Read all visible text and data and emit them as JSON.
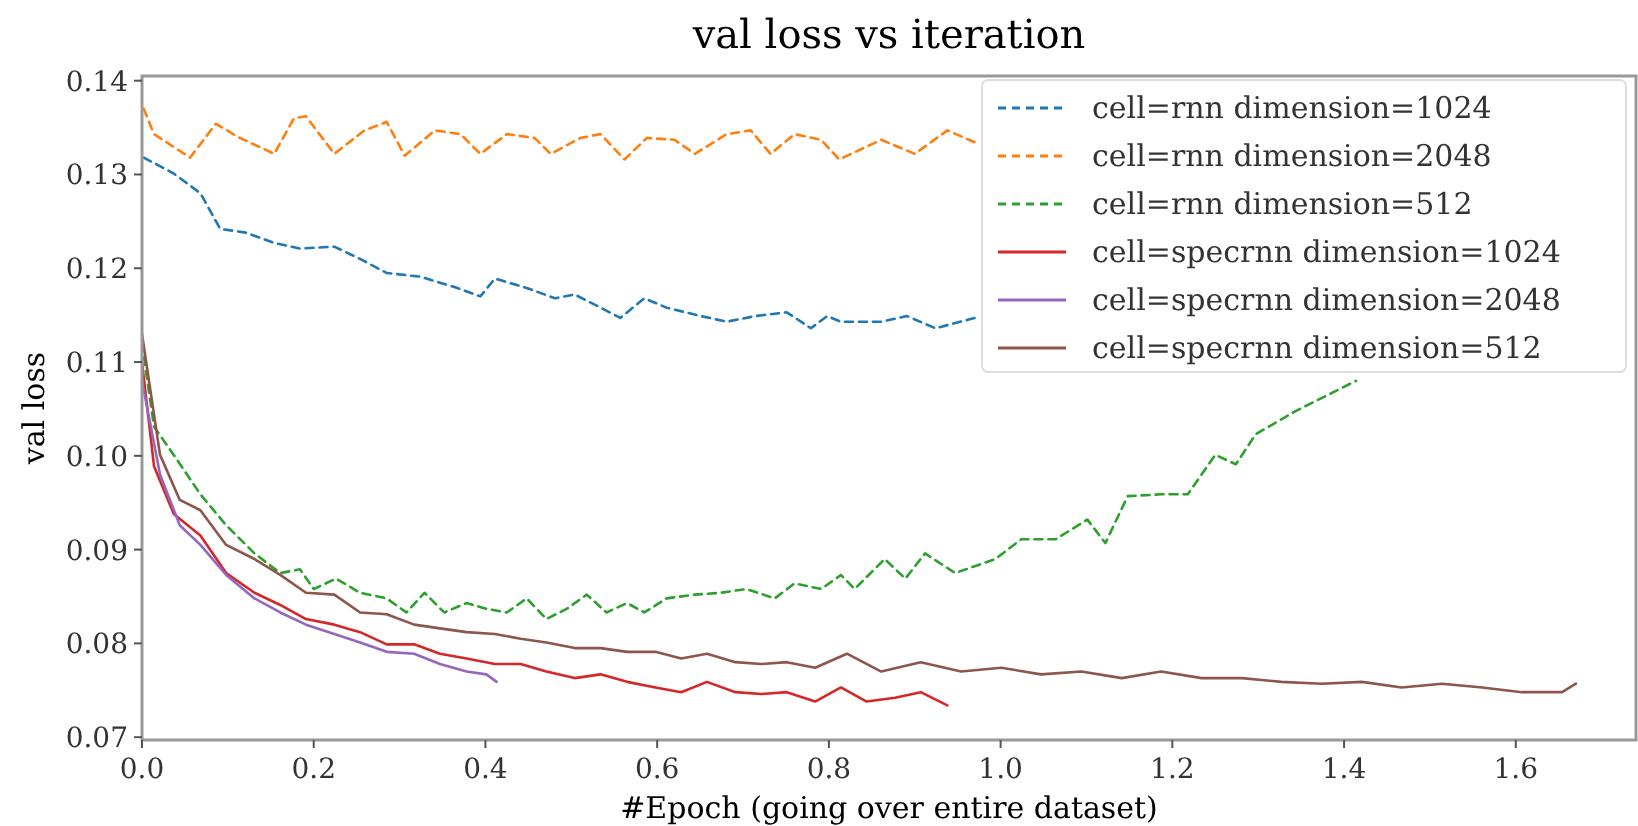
{
  "chart_data": {
    "type": "line",
    "title": "val loss vs iteration",
    "xlabel": "#Epoch (going over entire dataset)",
    "ylabel": "val loss",
    "xlim": [
      0,
      1.74
    ],
    "ylim": [
      0.0697,
      0.1405
    ],
    "xticks": [
      {
        "value": 0,
        "label": "0.0"
      },
      0.2,
      0.4,
      0.6,
      0.8,
      {
        "value": 1,
        "label": "1.0"
      },
      1.2,
      1.4,
      1.6
    ],
    "yticks": [
      0.07,
      0.08,
      0.09,
      {
        "value": 0.1,
        "label": "0.10"
      },
      0.11,
      0.12,
      0.13,
      0.14
    ],
    "grid": false,
    "legend": "top right",
    "marker": "none",
    "series": [
      {
        "name": "cell=rnn dimension=1024",
        "color": "#1f77b4",
        "line_style": "dashed",
        "x": [
          0.002,
          0.037,
          0.068,
          0.091,
          0.121,
          0.154,
          0.184,
          0.224,
          0.254,
          0.285,
          0.324,
          0.364,
          0.394,
          0.411,
          0.448,
          0.481,
          0.504,
          0.534,
          0.557,
          0.585,
          0.611,
          0.651,
          0.681,
          0.714,
          0.751,
          0.779,
          0.798,
          0.814,
          0.861,
          0.891,
          0.924,
          0.97
        ],
        "values": [
          0.1318,
          0.1301,
          0.128,
          0.1242,
          0.1238,
          0.1227,
          0.1221,
          0.1223,
          0.121,
          0.1195,
          0.1191,
          0.118,
          0.117,
          0.1189,
          0.1179,
          0.1168,
          0.1172,
          0.1158,
          0.1147,
          0.1168,
          0.1158,
          0.1149,
          0.1143,
          0.1149,
          0.1153,
          0.1136,
          0.1149,
          0.1143,
          0.1143,
          0.1149,
          0.1136,
          0.1147
        ]
      },
      {
        "name": "cell=rnn dimension=2048",
        "color": "#ff7f0e",
        "line_style": "dashed",
        "x": [
          0.002,
          0.014,
          0.056,
          0.086,
          0.114,
          0.154,
          0.177,
          0.191,
          0.224,
          0.259,
          0.285,
          0.306,
          0.341,
          0.371,
          0.394,
          0.425,
          0.457,
          0.476,
          0.511,
          0.534,
          0.562,
          0.588,
          0.62,
          0.644,
          0.681,
          0.709,
          0.732,
          0.76,
          0.791,
          0.812,
          0.861,
          0.9,
          0.938,
          0.973
        ],
        "values": [
          0.137,
          0.1343,
          0.1318,
          0.1354,
          0.1339,
          0.1322,
          0.136,
          0.1362,
          0.1322,
          0.1347,
          0.1356,
          0.132,
          0.1347,
          0.1343,
          0.1322,
          0.1343,
          0.1339,
          0.1322,
          0.1339,
          0.1343,
          0.1316,
          0.1339,
          0.1337,
          0.1322,
          0.1343,
          0.1347,
          0.1322,
          0.1343,
          0.1337,
          0.1316,
          0.1337,
          0.1322,
          0.1347,
          0.1333
        ]
      },
      {
        "name": "cell=rnn dimension=512",
        "color": "#2ca02c",
        "line_style": "dashed",
        "x": [
          0,
          0.014,
          0.037,
          0.068,
          0.098,
          0.131,
          0.161,
          0.184,
          0.2,
          0.226,
          0.254,
          0.285,
          0.308,
          0.329,
          0.352,
          0.378,
          0.401,
          0.425,
          0.448,
          0.471,
          0.495,
          0.518,
          0.541,
          0.565,
          0.585,
          0.611,
          0.644,
          0.674,
          0.704,
          0.737,
          0.76,
          0.791,
          0.814,
          0.83,
          0.865,
          0.889,
          0.912,
          0.947,
          0.994,
          1.024,
          1.064,
          1.101,
          1.122,
          1.148,
          1.187,
          1.218,
          1.25,
          1.274,
          1.297,
          1.344,
          1.414
        ],
        "values": [
          0.112,
          0.1031,
          0.1001,
          0.0959,
          0.0926,
          0.0896,
          0.0875,
          0.0879,
          0.0858,
          0.0869,
          0.0854,
          0.0848,
          0.0833,
          0.0854,
          0.0833,
          0.0843,
          0.0837,
          0.0833,
          0.0848,
          0.0826,
          0.0837,
          0.0852,
          0.0833,
          0.0843,
          0.0833,
          0.0848,
          0.0852,
          0.0854,
          0.0858,
          0.0848,
          0.0864,
          0.0858,
          0.0873,
          0.0858,
          0.089,
          0.0869,
          0.0896,
          0.0875,
          0.089,
          0.0911,
          0.0911,
          0.0932,
          0.0907,
          0.0957,
          0.0959,
          0.0959,
          0.1001,
          0.0991,
          0.1023,
          0.1048,
          0.108
        ]
      },
      {
        "name": "cell=specrnn dimension=1024",
        "color": "#d62728",
        "line_style": "solid",
        "x": [
          0,
          0.014,
          0.037,
          0.068,
          0.098,
          0.131,
          0.161,
          0.191,
          0.224,
          0.254,
          0.285,
          0.317,
          0.347,
          0.378,
          0.411,
          0.441,
          0.471,
          0.504,
          0.534,
          0.565,
          0.598,
          0.628,
          0.658,
          0.691,
          0.721,
          0.751,
          0.784,
          0.814,
          0.844,
          0.877,
          0.907,
          0.938
        ],
        "values": [
          0.11,
          0.0989,
          0.0938,
          0.0915,
          0.0875,
          0.0854,
          0.0841,
          0.0826,
          0.082,
          0.0812,
          0.0799,
          0.0799,
          0.0789,
          0.0784,
          0.0778,
          0.0778,
          0.077,
          0.0763,
          0.0767,
          0.0759,
          0.0753,
          0.0748,
          0.0759,
          0.0748,
          0.0746,
          0.0748,
          0.0738,
          0.0753,
          0.0738,
          0.0742,
          0.0748,
          0.0734
        ]
      },
      {
        "name": "cell=specrnn dimension=2048",
        "color": "#9467bd",
        "line_style": "solid",
        "x": [
          0,
          0.021,
          0.044,
          0.068,
          0.098,
          0.131,
          0.161,
          0.191,
          0.224,
          0.254,
          0.285,
          0.317,
          0.347,
          0.378,
          0.401,
          0.413
        ],
        "values": [
          0.108,
          0.098,
          0.0926,
          0.0905,
          0.0873,
          0.0848,
          0.0833,
          0.082,
          0.081,
          0.0801,
          0.0791,
          0.0789,
          0.0778,
          0.077,
          0.0767,
          0.0759
        ]
      },
      {
        "name": "cell=specrnn dimension=512",
        "color": "#8c564b",
        "line_style": "solid",
        "x": [
          0,
          0.021,
          0.044,
          0.068,
          0.098,
          0.131,
          0.161,
          0.191,
          0.224,
          0.254,
          0.285,
          0.317,
          0.347,
          0.378,
          0.411,
          0.441,
          0.471,
          0.504,
          0.534,
          0.565,
          0.598,
          0.628,
          0.658,
          0.691,
          0.721,
          0.751,
          0.784,
          0.821,
          0.861,
          0.907,
          0.954,
          1.001,
          1.047,
          1.094,
          1.141,
          1.187,
          1.234,
          1.281,
          1.327,
          1.374,
          1.421,
          1.467,
          1.514,
          1.561,
          1.607,
          1.654,
          1.67
        ],
        "values": [
          0.113,
          0.1001,
          0.0953,
          0.0942,
          0.0905,
          0.089,
          0.0873,
          0.0854,
          0.0852,
          0.0833,
          0.0831,
          0.082,
          0.0816,
          0.0812,
          0.081,
          0.0805,
          0.0801,
          0.0795,
          0.0795,
          0.0791,
          0.0791,
          0.0784,
          0.0789,
          0.078,
          0.0778,
          0.078,
          0.0774,
          0.0789,
          0.077,
          0.078,
          0.077,
          0.0774,
          0.0767,
          0.077,
          0.0763,
          0.077,
          0.0763,
          0.0763,
          0.0759,
          0.0757,
          0.0759,
          0.0753,
          0.0757,
          0.0753,
          0.0748,
          0.0748,
          0.0757
        ]
      }
    ]
  }
}
